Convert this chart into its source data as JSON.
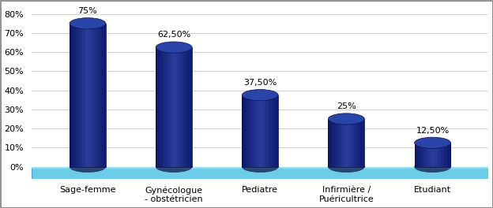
{
  "categories": [
    "Sage-femme",
    "Gynécologue\n- obstétricien",
    "Pediatre",
    "Infirmière /\nPuéricultrice",
    "Etudiant"
  ],
  "values": [
    75,
    62.5,
    37.5,
    25,
    12.5
  ],
  "labels": [
    "75%",
    "62,50%",
    "37,50%",
    "25%",
    "12,50%"
  ],
  "bar_color_body": "#0D1A6E",
  "bar_color_mid": "#1E308A",
  "bar_color_top": "#2A3F9E",
  "floor_color": "#6DCDE8",
  "floor_edge_color": "#4ABBE0",
  "background_color": "#FFFFFF",
  "border_color": "#AAAAAA",
  "grid_color": "#CCCCCC",
  "ylim_max": 85,
  "yticks": [
    0,
    10,
    20,
    30,
    40,
    50,
    60,
    70,
    80
  ],
  "ytick_labels": [
    "0%",
    "10%",
    "20%",
    "30%",
    "40%",
    "50%",
    "60%",
    "70%",
    "80%"
  ],
  "label_fontsize": 8,
  "tick_fontsize": 8,
  "bar_width": 0.42,
  "ell_ratio": 0.18,
  "floor_thickness": 6.5,
  "num_flutes": 12
}
